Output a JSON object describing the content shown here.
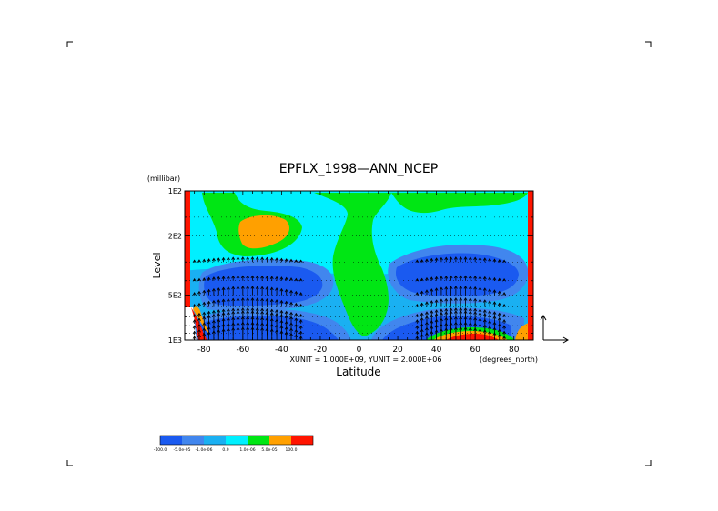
{
  "chart_data": {
    "type": "heatmap",
    "title": "EPFLX_1998—ANN_NCEP",
    "xlabel": "Latitude",
    "ylabel": "Level",
    "x_units": "(degrees_north)",
    "y_units": "(millibar)",
    "vector_scale_note": "XUNIT = 1.000E+09, YUNIT = 2.000E+06",
    "xlim": [
      -90,
      90
    ],
    "ylim": [
      1000,
      100
    ],
    "y_scale": "log",
    "x_ticks": [
      -80,
      -60,
      -40,
      -20,
      0,
      20,
      40,
      60,
      80
    ],
    "x_tick_labels": [
      "-80",
      "-60",
      "-40",
      "-20",
      "0",
      "20",
      "40",
      "60",
      "80"
    ],
    "y_ticks": [
      100,
      200,
      500,
      1000
    ],
    "y_tick_labels": [
      "1E2",
      "2E2",
      "5E2",
      "1E3"
    ],
    "grid": true,
    "colors": {
      "lt_neg100": "#1a5af0",
      "neg100_to_neg5e05": "#4186ee",
      "neg5e05_to_neg1e06": "#1ab0f2",
      "neg1e06_to_0": "#00f0ff",
      "zero_to_1e06": "#00e614",
      "1e06_to_5e05": "#ffa000",
      "gt_5e05": "#ff1400"
    },
    "legend": {
      "placement": "bottom-left",
      "swatches": [
        "#1a5af0",
        "#4186ee",
        "#1ab0f2",
        "#00f0ff",
        "#00e614",
        "#ffa000",
        "#ff1400"
      ],
      "labels": [
        "-100.0",
        "-5.0e-05",
        "-1.0e-06",
        "0.0",
        "1.0e-06",
        "5.0e-05",
        "100.0"
      ]
    },
    "regions": [
      {
        "label": "band_cyan_top",
        "class": "neg1e06_to_0"
      },
      {
        "label": "southern_upper_cyan_lobe",
        "class": "neg1e06_to_0"
      },
      {
        "label": "southern_upper_green",
        "class": "zero_to_1e06"
      },
      {
        "label": "southern_upper_orange",
        "class": "1e06_to_5e05"
      },
      {
        "label": "equatorial_green_plume",
        "class": "zero_to_1e06"
      },
      {
        "label": "northern_upper_green",
        "class": "zero_to_1e06"
      },
      {
        "label": "southern_midlevel_blue",
        "class": "lt_neg100"
      },
      {
        "label": "northern_midlevel_blue",
        "class": "lt_neg100"
      },
      {
        "label": "southern_surface_blue",
        "class": "lt_neg100"
      },
      {
        "label": "northern_surface_blue",
        "class": "lt_neg100"
      },
      {
        "label": "northern_surface_orange",
        "class": "1e06_to_5e05"
      },
      {
        "label": "northern_surface_red",
        "class": "gt_5e05"
      },
      {
        "label": "south_pole_red",
        "class": "gt_5e05"
      },
      {
        "label": "north_pole_red",
        "class": "gt_5e05"
      }
    ],
    "vector_fields": [
      {
        "lat_range": [
          -85,
          -30
        ],
        "p_range": [
          300,
          1000
        ],
        "direction": "upward"
      },
      {
        "lat_range": [
          30,
          75
        ],
        "p_range": [
          300,
          1000
        ],
        "direction": "upward"
      }
    ]
  }
}
